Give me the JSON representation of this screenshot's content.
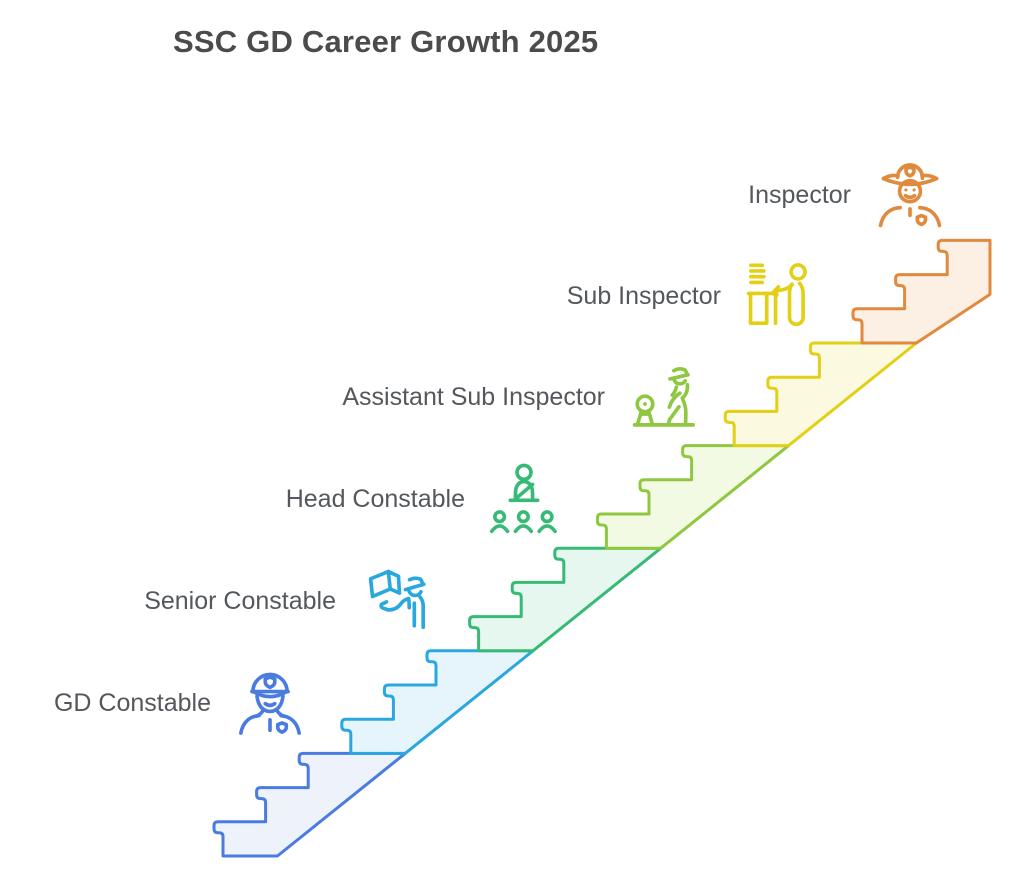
{
  "title": "SSC GD Career Growth 2025",
  "title_color": "#4b4b4b",
  "label_color": "#54585c",
  "ranks": [
    {
      "label": "GD Constable",
      "color": "#4a7be0",
      "fill": "#edf2fb",
      "icon": "police-officer-icon"
    },
    {
      "label": "Senior Constable",
      "color": "#2aa7de",
      "fill": "#e6f5fc",
      "icon": "officer-with-book-icon"
    },
    {
      "label": "Head Constable",
      "color": "#36ba76",
      "fill": "#e5f7ee",
      "icon": "team-leader-icon"
    },
    {
      "label": "Assistant Sub Inspector",
      "color": "#8fc740",
      "fill": "#f3fae4",
      "icon": "inspection-officer-icon"
    },
    {
      "label": "Sub Inspector",
      "color": "#e3cf16",
      "fill": "#fcf9e1",
      "icon": "officer-at-desk-icon"
    },
    {
      "label": "Inspector",
      "color": "#e08a3e",
      "fill": "#fcefe3",
      "icon": "inspector-hat-officer-icon"
    }
  ]
}
